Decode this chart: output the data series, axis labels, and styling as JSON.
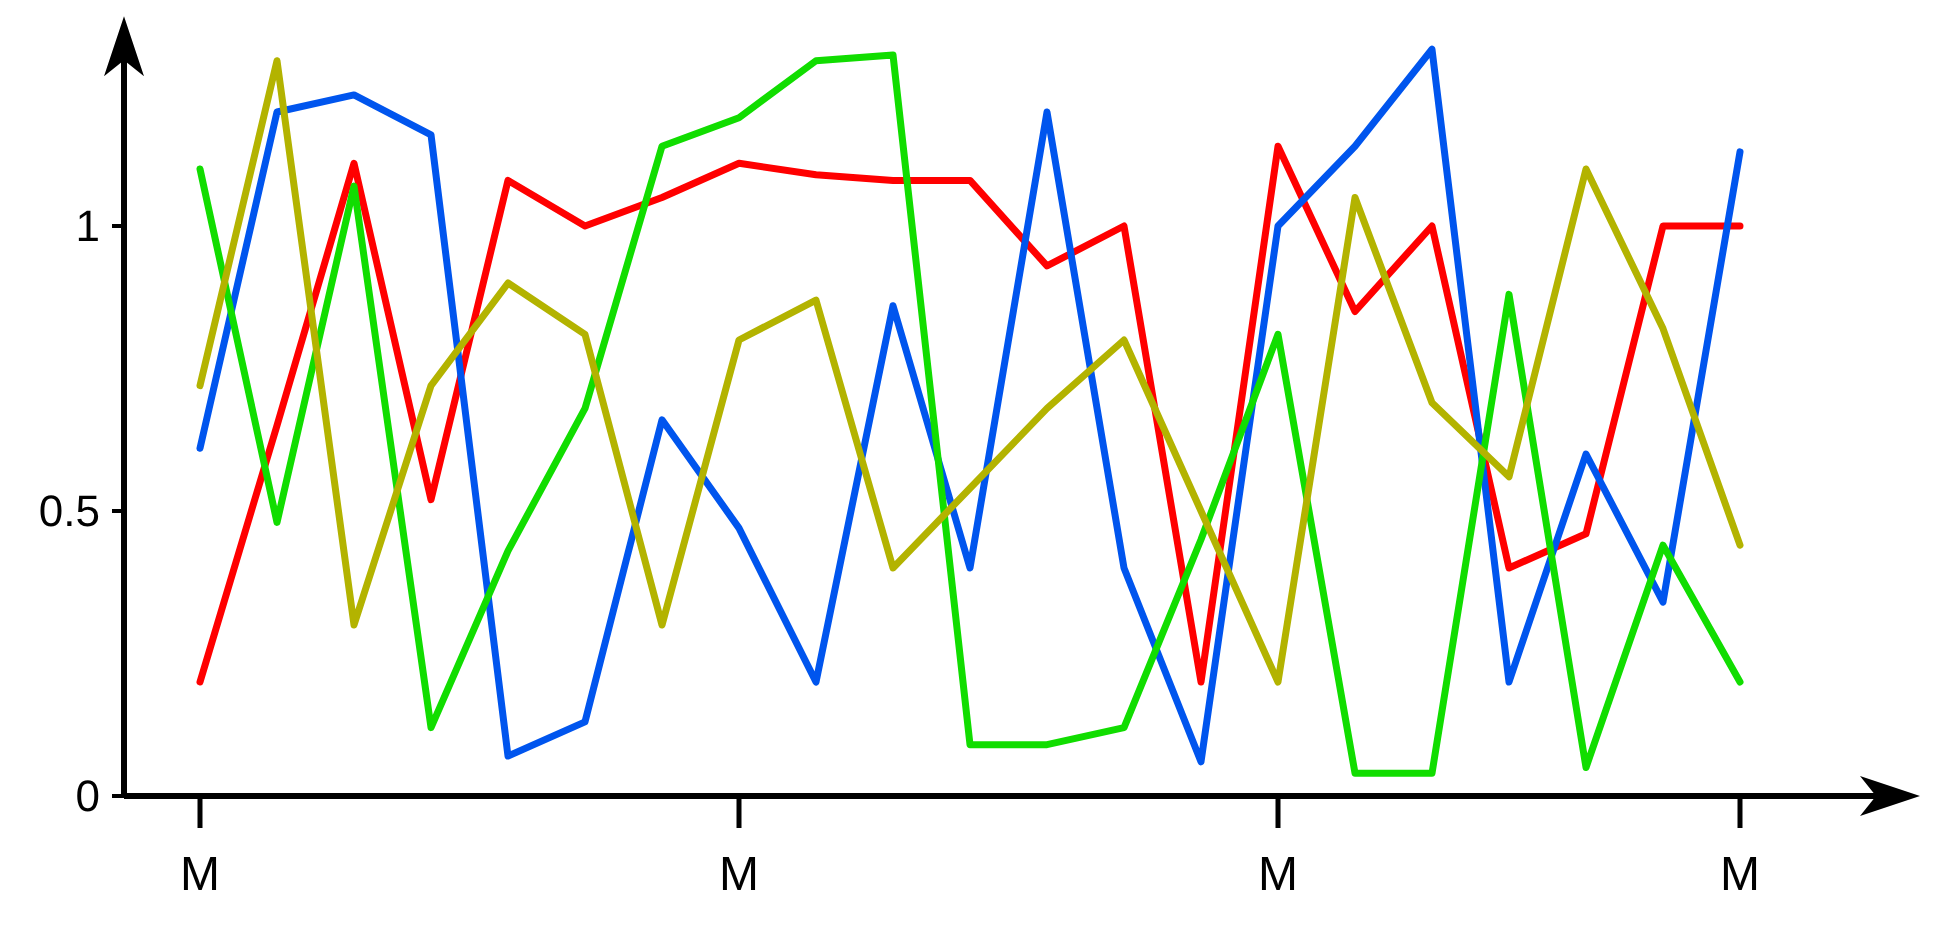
{
  "chart_data": {
    "type": "line",
    "categories": [
      "M",
      null,
      null,
      null,
      null,
      null,
      null,
      "M",
      null,
      null,
      null,
      null,
      null,
      null,
      "M",
      null,
      null,
      null,
      null,
      null,
      "M"
    ],
    "ylim": [
      0,
      1.34
    ],
    "yticks": [
      0,
      0.5,
      1
    ],
    "grid": false,
    "series": [
      {
        "color": "#ff0000",
        "values": [
          0.2,
          0.65,
          1.11,
          0.52,
          1.08,
          1.0,
          1.05,
          1.11,
          1.09,
          1.08,
          1.08,
          0.93,
          1.0,
          0.2,
          1.14,
          0.85,
          1.0,
          0.4,
          0.46,
          1.0,
          1.0
        ]
      },
      {
        "color": "#0055ee",
        "values": [
          0.61,
          1.2,
          1.23,
          1.16,
          0.07,
          0.13,
          0.66,
          0.47,
          0.2,
          0.86,
          0.4,
          1.2,
          0.4,
          0.06,
          1.0,
          1.14,
          1.31,
          0.2,
          0.6,
          0.34,
          1.13
        ]
      },
      {
        "color": "#11dd00",
        "values": [
          1.1,
          0.48,
          1.07,
          0.12,
          0.43,
          0.68,
          1.14,
          1.19,
          1.29,
          1.3,
          0.09,
          0.09,
          0.12,
          0.45,
          0.81,
          0.04,
          0.04,
          0.88,
          0.05,
          0.44,
          0.2
        ]
      },
      {
        "color": "#b3b300",
        "values": [
          0.72,
          1.29,
          0.3,
          0.72,
          0.9,
          0.81,
          0.3,
          0.8,
          0.87,
          0.4,
          0.54,
          0.68,
          0.8,
          0.5,
          0.2,
          1.05,
          0.69,
          0.56,
          1.1,
          0.82,
          0.44
        ]
      }
    ]
  }
}
